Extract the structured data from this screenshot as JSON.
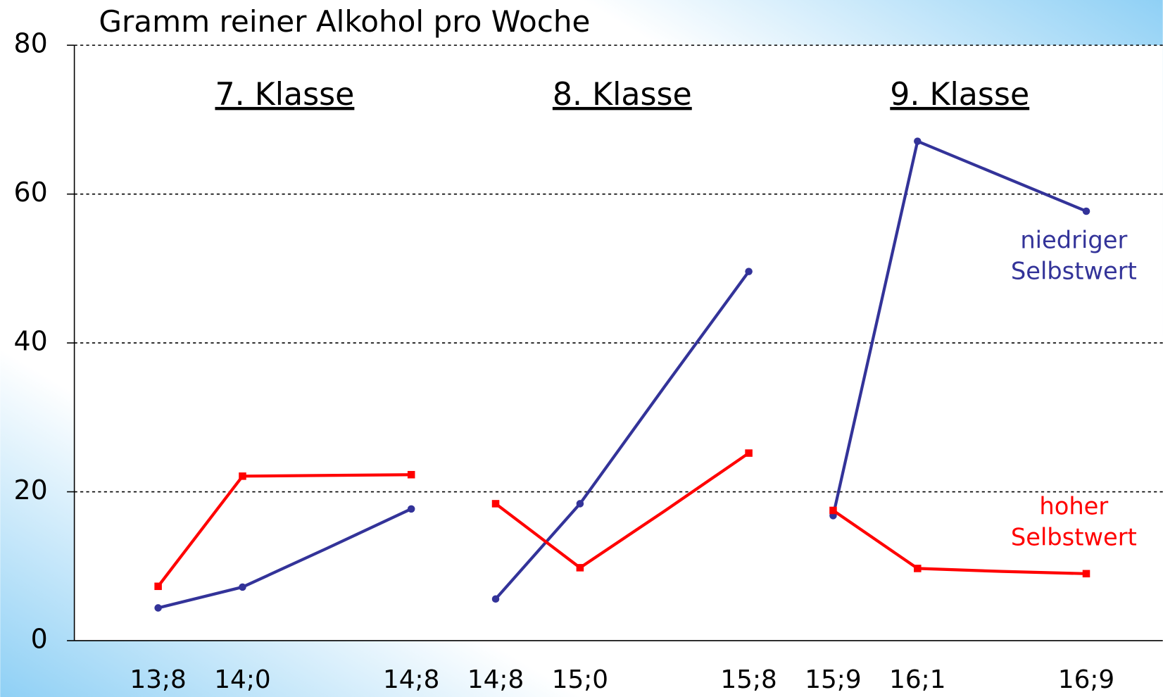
{
  "chart_data": {
    "type": "line",
    "title": "Gramm reiner Alkohol pro Woche",
    "ylim": [
      0,
      80
    ],
    "yticks": [
      0,
      20,
      40,
      60,
      80
    ],
    "grid": true,
    "series": [
      {
        "name": "niedriger Selbstwert",
        "color": "#333399"
      },
      {
        "name": "hoher Selbstwert",
        "color": "#ff0000"
      }
    ],
    "panels": [
      {
        "title": "7. Klasse",
        "categories": [
          "13;8",
          "14;0",
          null,
          "14;8"
        ],
        "values": [
          [
            4.4,
            7.2,
            12.4,
            17.7
          ],
          [
            7.3,
            22.1,
            22.2,
            22.3
          ]
        ]
      },
      {
        "title": "8. Klasse",
        "categories": [
          "14;8",
          "15;0",
          null,
          "15;8"
        ],
        "values": [
          [
            5.6,
            18.4,
            34.1,
            49.6
          ],
          [
            18.4,
            9.8,
            17.4,
            25.2
          ]
        ]
      },
      {
        "title": "9. Klasse",
        "categories": [
          "15;9",
          "16;1",
          null,
          "16;9"
        ],
        "values": [
          [
            16.8,
            67.1,
            62.4,
            57.7
          ],
          [
            17.5,
            9.7,
            9.3,
            9.0
          ]
        ]
      }
    ]
  }
}
